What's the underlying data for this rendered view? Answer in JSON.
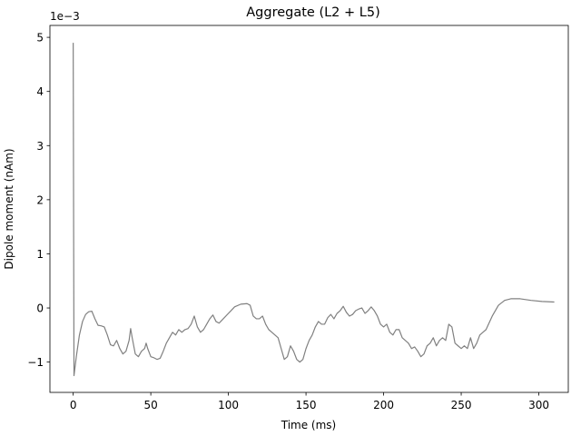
{
  "chart_data": {
    "type": "line",
    "title": "Aggregate (L2 + L5)",
    "xlabel": "Time (ms)",
    "ylabel": "Dipole moment (nAm)",
    "y_offset_label": "1e−3",
    "color": "#808080",
    "x": [
      0,
      0.5,
      2,
      4,
      6,
      8,
      10,
      12,
      14,
      16,
      18,
      20,
      22,
      24,
      26,
      28,
      30,
      32,
      34,
      36,
      37,
      38,
      40,
      42,
      44,
      46,
      47,
      48,
      50,
      52,
      54,
      56,
      58,
      60,
      62,
      64,
      66,
      68,
      70,
      72,
      74,
      76,
      78,
      80,
      82,
      84,
      86,
      88,
      90,
      92,
      94,
      96,
      100,
      104,
      108,
      112,
      114,
      116,
      118,
      120,
      122,
      124,
      126,
      128,
      130,
      132,
      134,
      136,
      138,
      140,
      142,
      144,
      146,
      148,
      150,
      152,
      154,
      156,
      158,
      160,
      162,
      164,
      166,
      168,
      170,
      172,
      174,
      176,
      178,
      180,
      182,
      184,
      186,
      188,
      190,
      192,
      194,
      196,
      198,
      200,
      202,
      204,
      206,
      208,
      210,
      212,
      214,
      216,
      218,
      220,
      222,
      224,
      226,
      228,
      230,
      232,
      234,
      236,
      238,
      240,
      242,
      244,
      246,
      248,
      250,
      252,
      254,
      256,
      258,
      260,
      262,
      264,
      266,
      270,
      274,
      278,
      282,
      288,
      295,
      302,
      310
    ],
    "values": [
      4.9,
      -1.25,
      -0.9,
      -0.5,
      -0.25,
      -0.12,
      -0.07,
      -0.06,
      -0.2,
      -0.32,
      -0.33,
      -0.35,
      -0.5,
      -0.68,
      -0.7,
      -0.6,
      -0.75,
      -0.85,
      -0.8,
      -0.6,
      -0.38,
      -0.55,
      -0.85,
      -0.9,
      -0.8,
      -0.75,
      -0.65,
      -0.75,
      -0.9,
      -0.92,
      -0.95,
      -0.93,
      -0.8,
      -0.65,
      -0.55,
      -0.45,
      -0.5,
      -0.4,
      -0.45,
      -0.4,
      -0.38,
      -0.3,
      -0.15,
      -0.35,
      -0.45,
      -0.4,
      -0.3,
      -0.2,
      -0.13,
      -0.25,
      -0.28,
      -0.22,
      -0.1,
      0.02,
      0.07,
      0.08,
      0.05,
      -0.15,
      -0.2,
      -0.2,
      -0.15,
      -0.3,
      -0.4,
      -0.45,
      -0.5,
      -0.55,
      -0.75,
      -0.95,
      -0.9,
      -0.7,
      -0.8,
      -0.95,
      -1.0,
      -0.95,
      -0.75,
      -0.6,
      -0.5,
      -0.35,
      -0.25,
      -0.3,
      -0.3,
      -0.18,
      -0.12,
      -0.2,
      -0.1,
      -0.05,
      0.03,
      -0.08,
      -0.15,
      -0.12,
      -0.05,
      -0.02,
      0.0,
      -0.1,
      -0.05,
      0.02,
      -0.05,
      -0.15,
      -0.3,
      -0.35,
      -0.3,
      -0.45,
      -0.5,
      -0.4,
      -0.4,
      -0.55,
      -0.6,
      -0.65,
      -0.75,
      -0.72,
      -0.8,
      -0.9,
      -0.85,
      -0.7,
      -0.65,
      -0.55,
      -0.7,
      -0.6,
      -0.55,
      -0.6,
      -0.3,
      -0.35,
      -0.65,
      -0.7,
      -0.75,
      -0.7,
      -0.75,
      -0.55,
      -0.75,
      -0.65,
      -0.5,
      -0.45,
      -0.4,
      -0.15,
      0.05,
      0.14,
      0.17,
      0.17,
      0.14,
      0.12,
      0.11
    ],
    "xlim": [
      -15,
      319
    ],
    "ylim": [
      -1.56,
      5.22
    ],
    "xticks": [
      0,
      50,
      100,
      150,
      200,
      250,
      300
    ],
    "yticks": [
      {
        "value": -1,
        "label": "−1"
      },
      0,
      1,
      2,
      3,
      4,
      5
    ]
  }
}
